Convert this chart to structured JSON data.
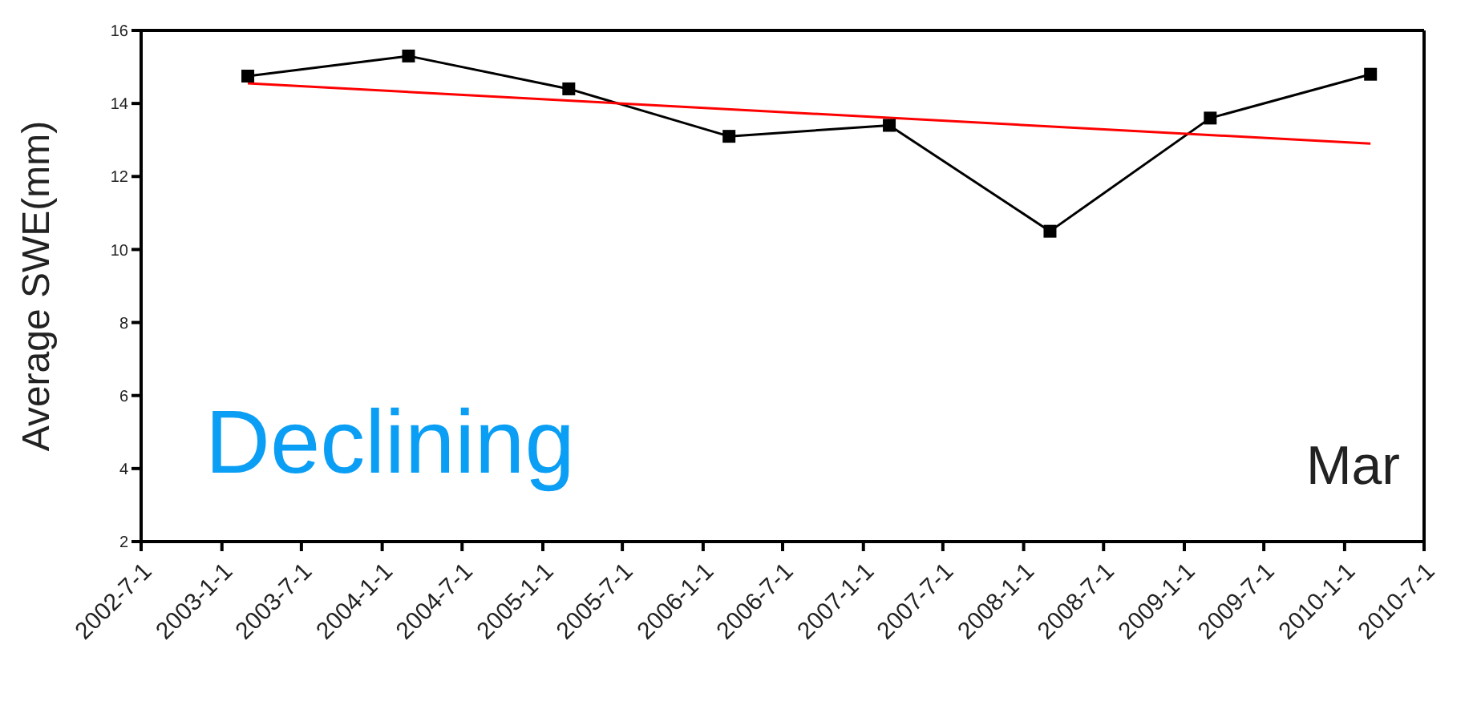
{
  "chart_data": {
    "type": "line",
    "ylabel": "Average SWE(mm)",
    "x": [
      "2003-03",
      "2004-03",
      "2005-03",
      "2006-03",
      "2007-03",
      "2008-03",
      "2009-03",
      "2010-03"
    ],
    "series": [
      {
        "color": "#000000",
        "values": [
          14.75,
          15.3,
          14.4,
          13.1,
          13.4,
          10.5,
          13.6,
          14.8
        ],
        "marker": "square"
      },
      {
        "type": "line",
        "color": "#ff0000",
        "x": [
          "2003-03",
          "2010-03"
        ],
        "values": [
          14.55,
          12.9
        ],
        "marker": "none"
      }
    ],
    "xlim": [
      "2002-07-01",
      "2010-07-01"
    ],
    "xticks": [
      {
        "value": "2002-07-01",
        "label": "2002-7-1"
      },
      {
        "value": "2003-01-01",
        "label": "2003-1-1"
      },
      {
        "value": "2003-07-01",
        "label": "2003-7-1"
      },
      {
        "value": "2004-01-01",
        "label": "2004-1-1"
      },
      {
        "value": "2004-07-01",
        "label": "2004-7-1"
      },
      {
        "value": "2005-01-01",
        "label": "2005-1-1"
      },
      {
        "value": "2005-07-01",
        "label": "2005-7-1"
      },
      {
        "value": "2006-01-01",
        "label": "2006-1-1"
      },
      {
        "value": "2006-07-01",
        "label": "2006-7-1"
      },
      {
        "value": "2007-01-01",
        "label": "2007-1-1"
      },
      {
        "value": "2007-07-01",
        "label": "2007-7-1"
      },
      {
        "value": "2008-01-01",
        "label": "2008-1-1"
      },
      {
        "value": "2008-07-01",
        "label": "2008-7-1"
      },
      {
        "value": "2009-01-01",
        "label": "2009-1-1"
      },
      {
        "value": "2009-07-01",
        "label": "2009-7-1"
      },
      {
        "value": "2010-01-01",
        "label": "2010-1-1"
      },
      {
        "value": "2010-07-01",
        "label": "2010-7-1"
      }
    ],
    "ylim": [
      2,
      16
    ],
    "yticks": [
      2,
      4,
      6,
      8,
      10,
      12,
      14,
      16
    ],
    "line_style": "solid",
    "annotations": [
      "Declining",
      "Mar"
    ]
  }
}
